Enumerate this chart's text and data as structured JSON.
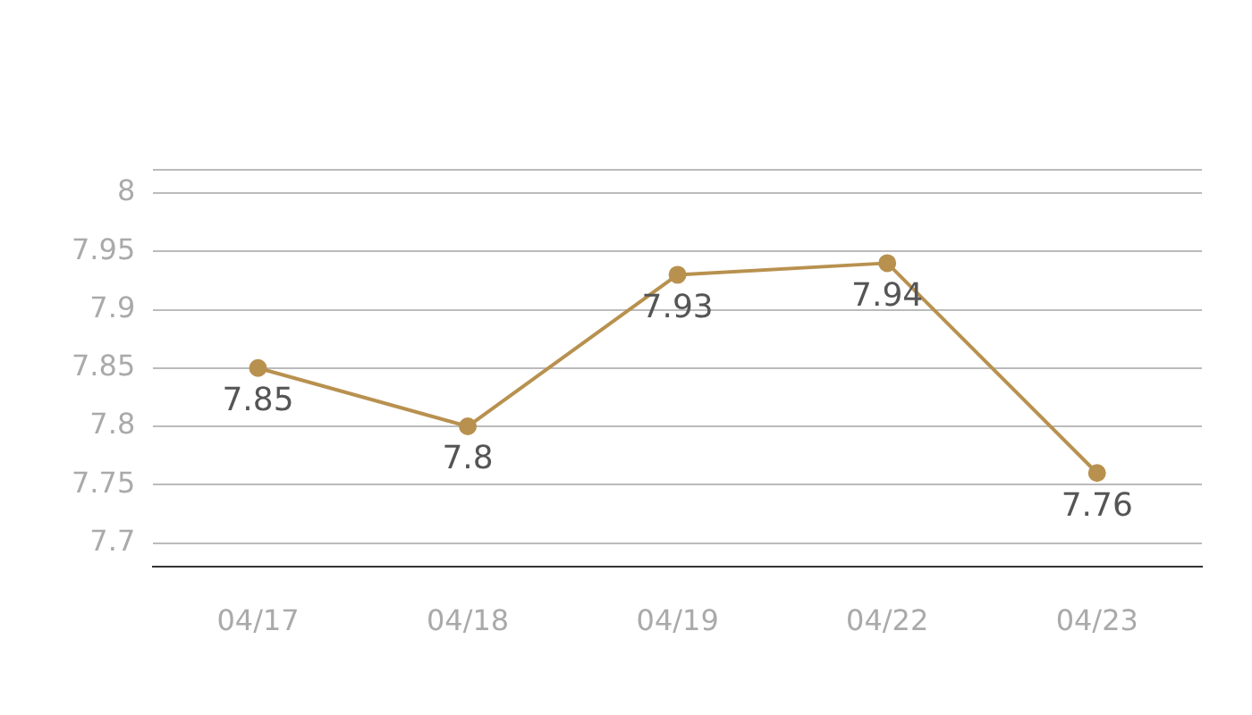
{
  "chart_data": {
    "type": "line",
    "categories": [
      "04/17",
      "04/18",
      "04/19",
      "04/22",
      "04/23"
    ],
    "series": [
      {
        "color": "#b8914f",
        "values": [
          7.85,
          7.8,
          7.93,
          7.94,
          7.76
        ]
      }
    ],
    "ylim": [
      7.68,
      8.02
    ],
    "yticks": [
      7.7,
      7.75,
      7.8,
      7.85,
      7.9,
      7.95,
      8,
      {
        "value": 8.02,
        "label": null
      }
    ],
    "grid": "y",
    "legend": false,
    "marker": "circle",
    "line_style": "solid",
    "data_labels": true
  }
}
